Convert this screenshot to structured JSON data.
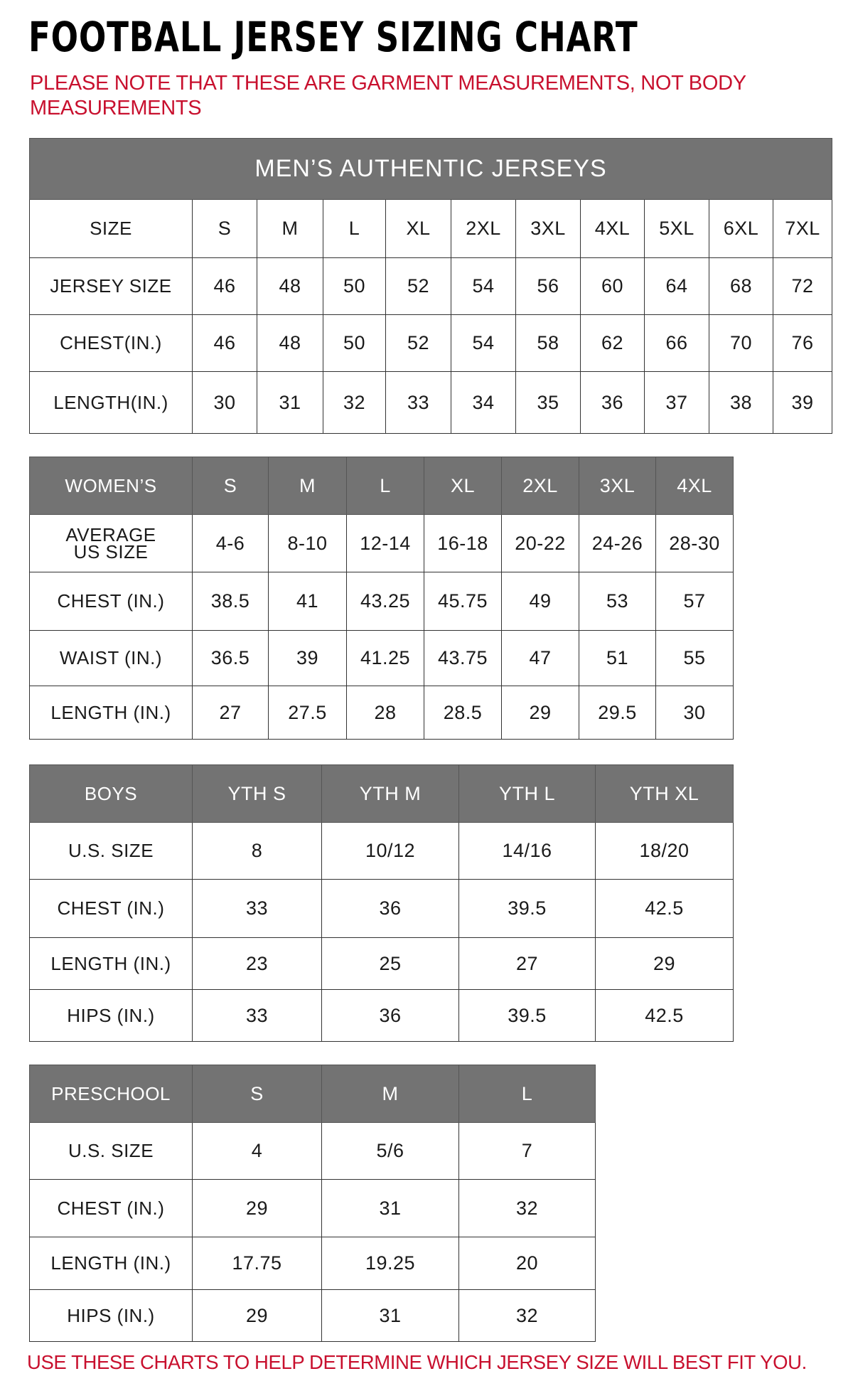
{
  "title": "FOOTBALL JERSEY SIZING CHART",
  "note": "PLEASE NOTE THAT THESE ARE GARMENT MEASUREMENTS, NOT BODY MEASUREMENTS",
  "footer": "USE THESE CHARTS TO HELP DETERMINE WHICH JERSEY SIZE WILL BEST FIT YOU.",
  "colors": {
    "header_bg": "#737373",
    "accent_red": "#c8102e"
  },
  "tables": [
    {
      "caption": "MEN’S AUTHENTIC JERSEYS",
      "header": [
        "SIZE",
        "S",
        "M",
        "L",
        "XL",
        "2XL",
        "3XL",
        "4XL",
        "5XL",
        "6XL",
        "7XL"
      ],
      "header_style": "plain",
      "rows": [
        [
          "JERSEY SIZE",
          "46",
          "48",
          "50",
          "52",
          "54",
          "56",
          "60",
          "64",
          "68",
          "72"
        ],
        [
          "CHEST(IN.)",
          "46",
          "48",
          "50",
          "52",
          "54",
          "58",
          "62",
          "66",
          "70",
          "76"
        ],
        [
          "LENGTH(IN.)",
          "30",
          "31",
          "32",
          "33",
          "34",
          "35",
          "36",
          "37",
          "38",
          "39"
        ]
      ]
    },
    {
      "header": [
        "WOMEN’S",
        "S",
        "M",
        "L",
        "XL",
        "2XL",
        "3XL",
        "4XL"
      ],
      "header_style": "gray",
      "rows": [
        [
          "AVERAGE US SIZE",
          "4-6",
          "8-10",
          "12-14",
          "16-18",
          "20-22",
          "24-26",
          "28-30"
        ],
        [
          "CHEST (IN.)",
          "38.5",
          "41",
          "43.25",
          "45.75",
          "49",
          "53",
          "57"
        ],
        [
          "WAIST (IN.)",
          "36.5",
          "39",
          "41.25",
          "43.75",
          "47",
          "51",
          "55"
        ],
        [
          "LENGTH (IN.)",
          "27",
          "27.5",
          "28",
          "28.5",
          "29",
          "29.5",
          "30"
        ]
      ]
    },
    {
      "header": [
        "BOYS",
        "YTH S",
        "YTH M",
        "YTH L",
        "YTH XL"
      ],
      "header_style": "gray",
      "rows": [
        [
          "U.S. SIZE",
          "8",
          "10/12",
          "14/16",
          "18/20"
        ],
        [
          "CHEST (IN.)",
          "33",
          "36",
          "39.5",
          "42.5"
        ],
        [
          "LENGTH (IN.)",
          "23",
          "25",
          "27",
          "29"
        ],
        [
          "HIPS (IN.)",
          "33",
          "36",
          "39.5",
          "42.5"
        ]
      ]
    },
    {
      "header": [
        "PRESCHOOL",
        "S",
        "M",
        "L"
      ],
      "header_style": "gray",
      "rows": [
        [
          "U.S. SIZE",
          "4",
          "5/6",
          "7"
        ],
        [
          "CHEST (IN.)",
          "29",
          "31",
          "32"
        ],
        [
          "LENGTH (IN.)",
          "17.75",
          "19.25",
          "20"
        ],
        [
          "HIPS (IN.)",
          "29",
          "31",
          "32"
        ]
      ]
    }
  ]
}
